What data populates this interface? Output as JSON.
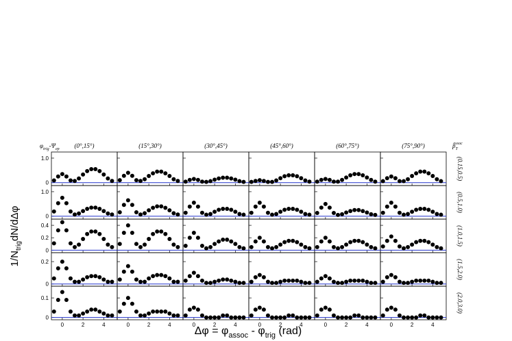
{
  "chart_data": {
    "type": "scatter",
    "corner_label": [
      "φ",
      "trig",
      "-Ψ",
      "ep"
    ],
    "right_header": [
      "p",
      "T",
      "assoc"
    ],
    "y_label": [
      "1/N",
      "trig",
      "dN/dΔφ"
    ],
    "x_label": [
      "Δφ = φ",
      "assoc",
      " - φ",
      "trig",
      " (rad)"
    ],
    "columns": [
      "(0°,15°)",
      "(15°,30°)",
      "(30°,45°)",
      "(45°,60°)",
      "(60°,75°)",
      "(75°,90°)"
    ],
    "x": [
      -0.8,
      -0.4,
      0,
      0.4,
      0.8,
      1.2,
      1.6,
      2.0,
      2.4,
      2.8,
      3.2,
      3.6,
      4.0,
      4.4,
      4.8
    ],
    "xlim": [
      -1.05,
      5.3
    ],
    "xticks": [
      0,
      2,
      4
    ],
    "color": "#000000",
    "rows": [
      {
        "label": "(0.15,0.5)",
        "ylim": [
          -0.12,
          1.25
        ],
        "yticks": [
          0,
          {
            "value": 1,
            "label": "1.0"
          }
        ],
        "panels": [
          [
            0.09,
            0.25,
            0.35,
            0.25,
            0.09,
            0.07,
            0.17,
            0.33,
            0.47,
            0.55,
            0.55,
            0.47,
            0.33,
            0.17,
            0.07
          ],
          [
            0.1,
            0.28,
            0.4,
            0.28,
            0.1,
            0.07,
            0.14,
            0.27,
            0.38,
            0.45,
            0.45,
            0.38,
            0.27,
            0.14,
            0.07
          ],
          [
            0.04,
            0.11,
            0.15,
            0.11,
            0.04,
            0.03,
            0.06,
            0.12,
            0.17,
            0.2,
            0.2,
            0.17,
            0.12,
            0.06,
            0.03
          ],
          [
            0.03,
            0.07,
            0.1,
            0.07,
            0.03,
            0.03,
            0.09,
            0.18,
            0.26,
            0.3,
            0.3,
            0.26,
            0.18,
            0.09,
            0.04
          ],
          [
            0.04,
            0.11,
            0.15,
            0.11,
            0.04,
            0.04,
            0.11,
            0.21,
            0.3,
            0.35,
            0.35,
            0.3,
            0.21,
            0.11,
            0.04
          ],
          [
            0.06,
            0.18,
            0.25,
            0.18,
            0.06,
            0.06,
            0.14,
            0.27,
            0.38,
            0.45,
            0.45,
            0.38,
            0.27,
            0.14,
            0.06
          ]
        ]
      },
      {
        "label": "(0.5,1.0)",
        "ylim": [
          -0.12,
          1.25
        ],
        "yticks": [
          0,
          {
            "value": 1,
            "label": "1.0"
          }
        ],
        "panels": [
          [
            0.19,
            0.53,
            0.75,
            0.53,
            0.19,
            0.07,
            0.11,
            0.21,
            0.3,
            0.35,
            0.35,
            0.3,
            0.21,
            0.11,
            0.07
          ],
          [
            0.16,
            0.46,
            0.65,
            0.46,
            0.16,
            0.07,
            0.12,
            0.24,
            0.34,
            0.4,
            0.4,
            0.34,
            0.24,
            0.12,
            0.07
          ],
          [
            0.14,
            0.39,
            0.55,
            0.39,
            0.14,
            0.06,
            0.09,
            0.18,
            0.26,
            0.3,
            0.3,
            0.26,
            0.18,
            0.09,
            0.06
          ],
          [
            0.14,
            0.39,
            0.55,
            0.39,
            0.14,
            0.06,
            0.09,
            0.18,
            0.26,
            0.3,
            0.3,
            0.26,
            0.18,
            0.09,
            0.06
          ],
          [
            0.13,
            0.35,
            0.5,
            0.35,
            0.13,
            0.05,
            0.08,
            0.15,
            0.21,
            0.25,
            0.25,
            0.21,
            0.15,
            0.08,
            0.05
          ],
          [
            0.14,
            0.39,
            0.55,
            0.39,
            0.14,
            0.06,
            0.09,
            0.18,
            0.26,
            0.3,
            0.3,
            0.26,
            0.18,
            0.09,
            0.06
          ]
        ]
      },
      {
        "label": "(1.0,1.5)",
        "ylim": [
          -0.04,
          0.5
        ],
        "yticks": [
          0,
          0.2,
          0.4
        ],
        "panels": [
          [
            0.11,
            0.32,
            0.45,
            0.32,
            0.11,
            0.05,
            0.09,
            0.18,
            0.26,
            0.3,
            0.3,
            0.26,
            0.18,
            0.09,
            0.05
          ],
          [
            0.1,
            0.28,
            0.4,
            0.28,
            0.1,
            0.05,
            0.09,
            0.18,
            0.26,
            0.3,
            0.3,
            0.26,
            0.18,
            0.09,
            0.05
          ],
          [
            0.07,
            0.2,
            0.28,
            0.2,
            0.07,
            0.03,
            0.05,
            0.1,
            0.14,
            0.17,
            0.17,
            0.14,
            0.1,
            0.05,
            0.03
          ],
          [
            0.05,
            0.14,
            0.2,
            0.14,
            0.05,
            0.03,
            0.05,
            0.09,
            0.13,
            0.15,
            0.15,
            0.13,
            0.09,
            0.05,
            0.03
          ],
          [
            0.05,
            0.14,
            0.2,
            0.14,
            0.05,
            0.03,
            0.05,
            0.09,
            0.13,
            0.15,
            0.15,
            0.13,
            0.09,
            0.05,
            0.03
          ],
          [
            0.06,
            0.15,
            0.22,
            0.15,
            0.06,
            0.03,
            0.05,
            0.09,
            0.13,
            0.15,
            0.15,
            0.13,
            0.09,
            0.05,
            0.03
          ]
        ]
      },
      {
        "label": "(1.5,2.0)",
        "ylim": [
          -0.02,
          0.28
        ],
        "yticks": [
          0,
          0.2
        ],
        "panels": [
          [
            0.05,
            0.14,
            0.2,
            0.14,
            0.05,
            0.02,
            0.02,
            0.04,
            0.06,
            0.07,
            0.07,
            0.06,
            0.04,
            0.02,
            0.02
          ],
          [
            0.04,
            0.11,
            0.16,
            0.11,
            0.04,
            0.02,
            0.02,
            0.05,
            0.07,
            0.08,
            0.08,
            0.07,
            0.05,
            0.02,
            0.02
          ],
          [
            0.03,
            0.07,
            0.1,
            0.07,
            0.03,
            0.01,
            0.01,
            0.02,
            0.03,
            0.04,
            0.04,
            0.03,
            0.02,
            0.01,
            0.01
          ],
          [
            0.02,
            0.06,
            0.08,
            0.06,
            0.02,
            0.01,
            0.01,
            0.02,
            0.03,
            0.03,
            0.03,
            0.03,
            0.02,
            0.01,
            0.01
          ],
          [
            0.02,
            0.05,
            0.07,
            0.05,
            0.02,
            0.01,
            0.01,
            0.02,
            0.03,
            0.03,
            0.03,
            0.03,
            0.02,
            0.01,
            0.01
          ],
          [
            0.02,
            0.06,
            0.08,
            0.06,
            0.02,
            0.01,
            0.01,
            0.02,
            0.03,
            0.03,
            0.03,
            0.03,
            0.02,
            0.01,
            0.01
          ]
        ]
      },
      {
        "label": "(2.0,3.0)",
        "ylim": [
          -0.012,
          0.16
        ],
        "yticks": [
          0,
          0.1
        ],
        "panels": [
          [
            0.03,
            0.09,
            0.13,
            0.09,
            0.03,
            0.01,
            0.01,
            0.02,
            0.03,
            0.04,
            0.04,
            0.03,
            0.02,
            0.01,
            0.01
          ],
          [
            0.03,
            0.07,
            0.1,
            0.07,
            0.03,
            0.01,
            0.01,
            0.02,
            0.03,
            0.03,
            0.03,
            0.03,
            0.02,
            0.01,
            0.01
          ],
          [
            0.01,
            0.04,
            0.05,
            0.04,
            0.01,
            0,
            0,
            0,
            0,
            0.01,
            0.01,
            0,
            0,
            0,
            0
          ],
          [
            0.01,
            0.04,
            0.05,
            0.04,
            0.01,
            0,
            0,
            0,
            0,
            0.01,
            0.01,
            0,
            0,
            0,
            0
          ],
          [
            0.01,
            0.04,
            0.05,
            0.04,
            0.01,
            0,
            0,
            0,
            0,
            0.01,
            0.01,
            0,
            0,
            0,
            0
          ],
          [
            0.01,
            0.04,
            0.05,
            0.04,
            0.01,
            0,
            0,
            0,
            0,
            0.01,
            0.01,
            0,
            0,
            0,
            0
          ]
        ]
      }
    ]
  }
}
